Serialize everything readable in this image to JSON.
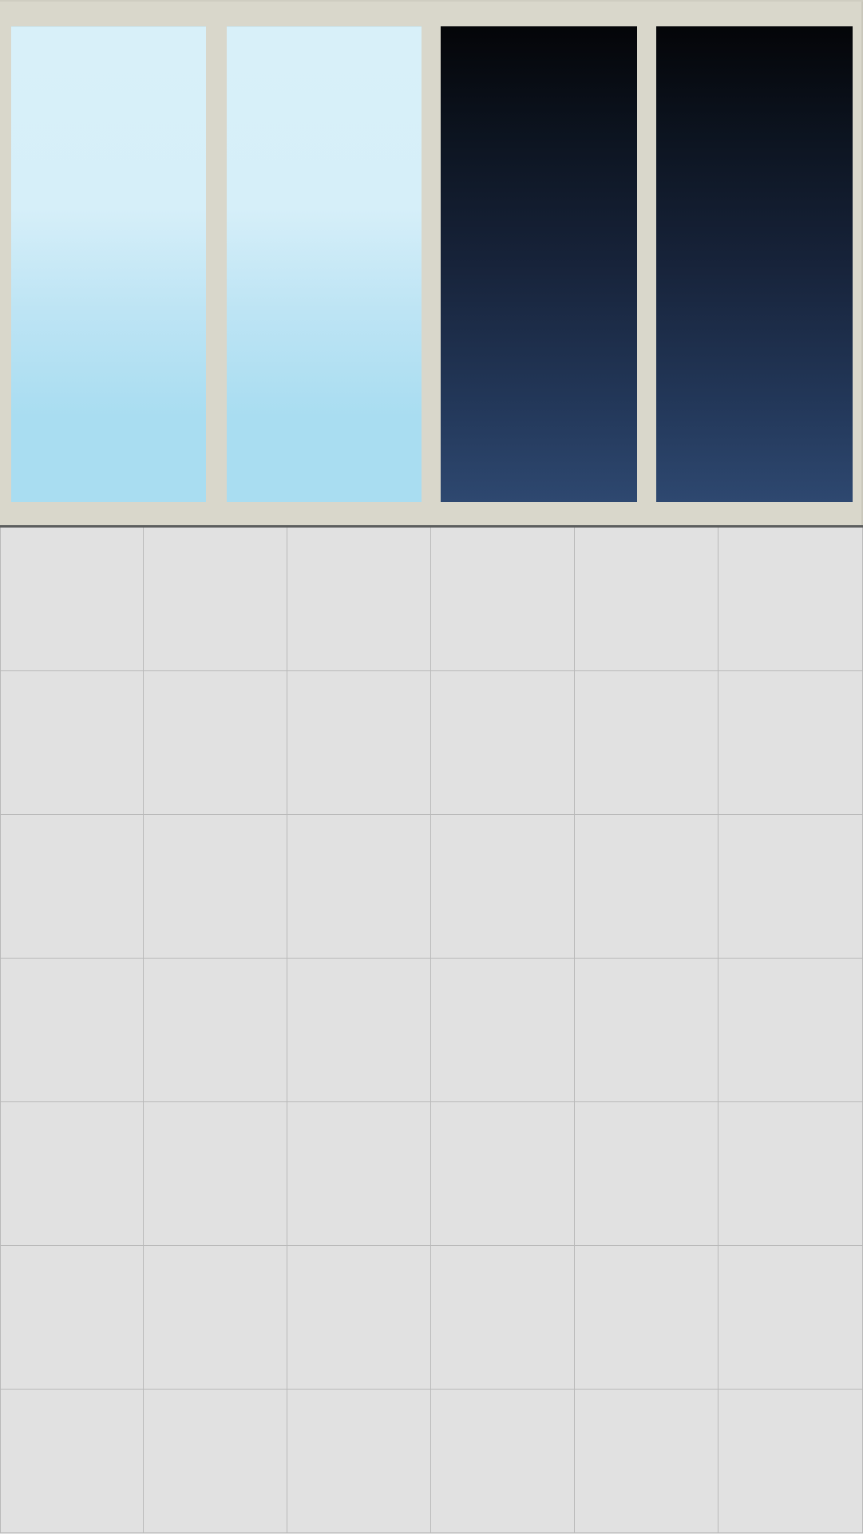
{
  "scene": {
    "type": "room-view",
    "window": {
      "panes": [
        {
          "name": "pane-1",
          "sky": "day"
        },
        {
          "name": "pane-2",
          "sky": "day"
        },
        {
          "name": "pane-3",
          "sky": "night"
        },
        {
          "name": "pane-4",
          "sky": "night"
        }
      ],
      "frame_color": "#d9d7cb"
    },
    "floor": {
      "rows": 7,
      "cols": 6,
      "tile_color": "#e1e1e1",
      "grout_color": "#b9b9b9"
    },
    "colors": {
      "day_sky_top": "#d8f0f9",
      "day_sky_bottom": "#a9ddf1",
      "night_sky_top": "#040508",
      "night_sky_bottom": "#2e4870"
    }
  }
}
